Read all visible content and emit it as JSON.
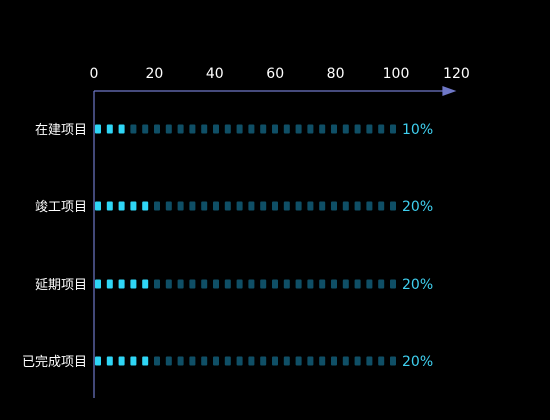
{
  "chart_data": {
    "type": "bar",
    "style": "pictorial-segmented-horizontal",
    "orientation": "horizontal",
    "categories": [
      "在建项目",
      "竣工项目",
      "延期项目",
      "已完成项目"
    ],
    "values": [
      10,
      20,
      20,
      20
    ],
    "value_labels": [
      "10%",
      "20%",
      "20%",
      "20%"
    ],
    "xlim": [
      0,
      120
    ],
    "x_ticks": [
      "0",
      "20",
      "40",
      "60",
      "80",
      "100",
      "120"
    ],
    "track_max": 100,
    "segment_count": 26,
    "x_axis_position": "top",
    "grid": false,
    "legend": "none",
    "colors": {
      "background": "#000000",
      "axis": "#6f78c8",
      "filled_segment": "#2fd6f6",
      "empty_segment": "#0f4f66",
      "value_label": "#3fd0f0",
      "text": "#ffffff"
    }
  }
}
